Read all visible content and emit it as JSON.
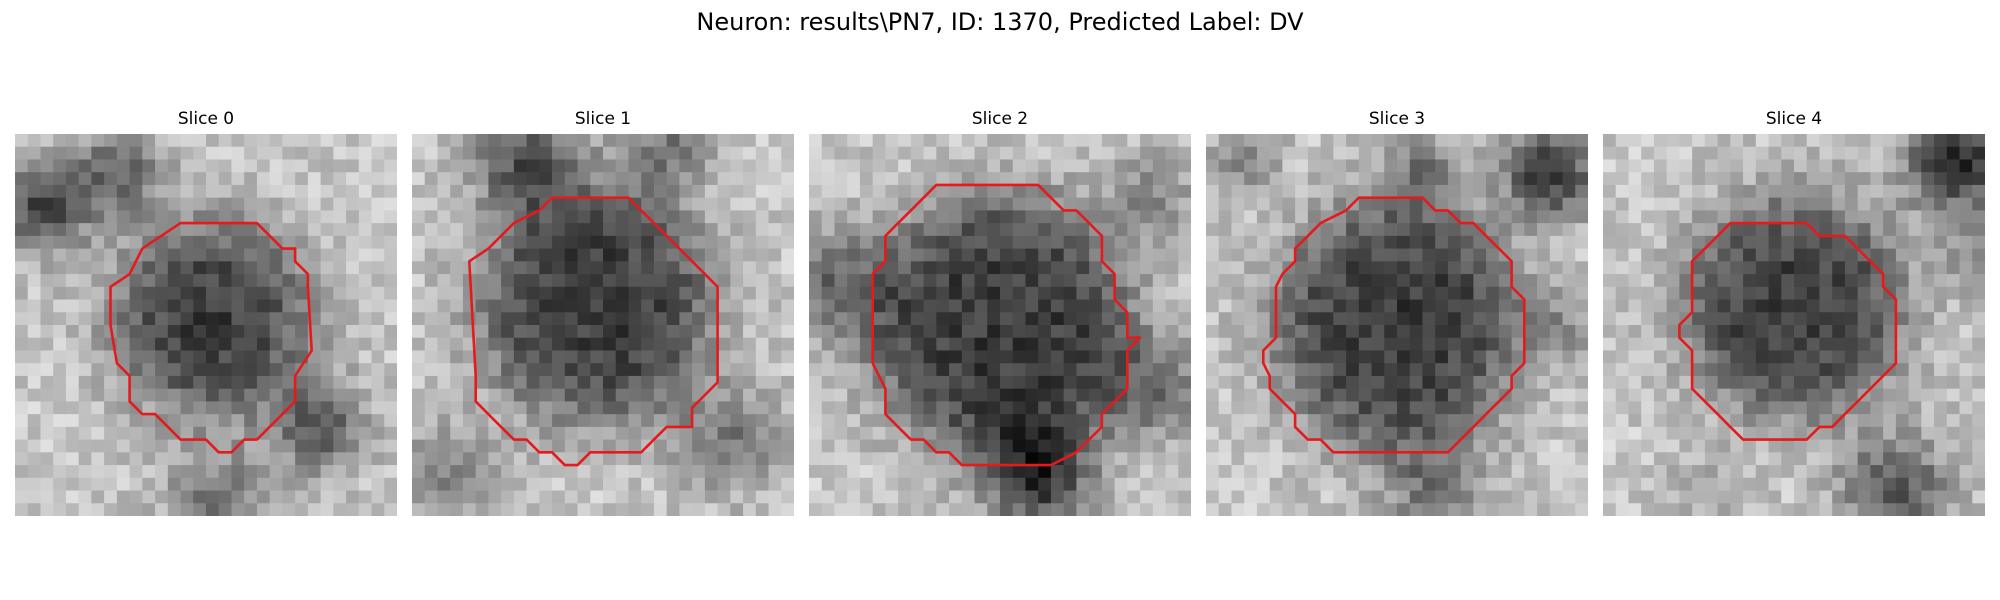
{
  "title": "Neuron: results\\PN7, ID: 1370, Predicted Label: DV",
  "panels": [
    {
      "title": "Slice 0"
    },
    {
      "title": "Slice 1"
    },
    {
      "title": "Slice 2"
    },
    {
      "title": "Slice 3"
    },
    {
      "title": "Slice 4"
    }
  ],
  "colors": {
    "contour": "#e41a1c",
    "background": "#ffffff"
  }
}
